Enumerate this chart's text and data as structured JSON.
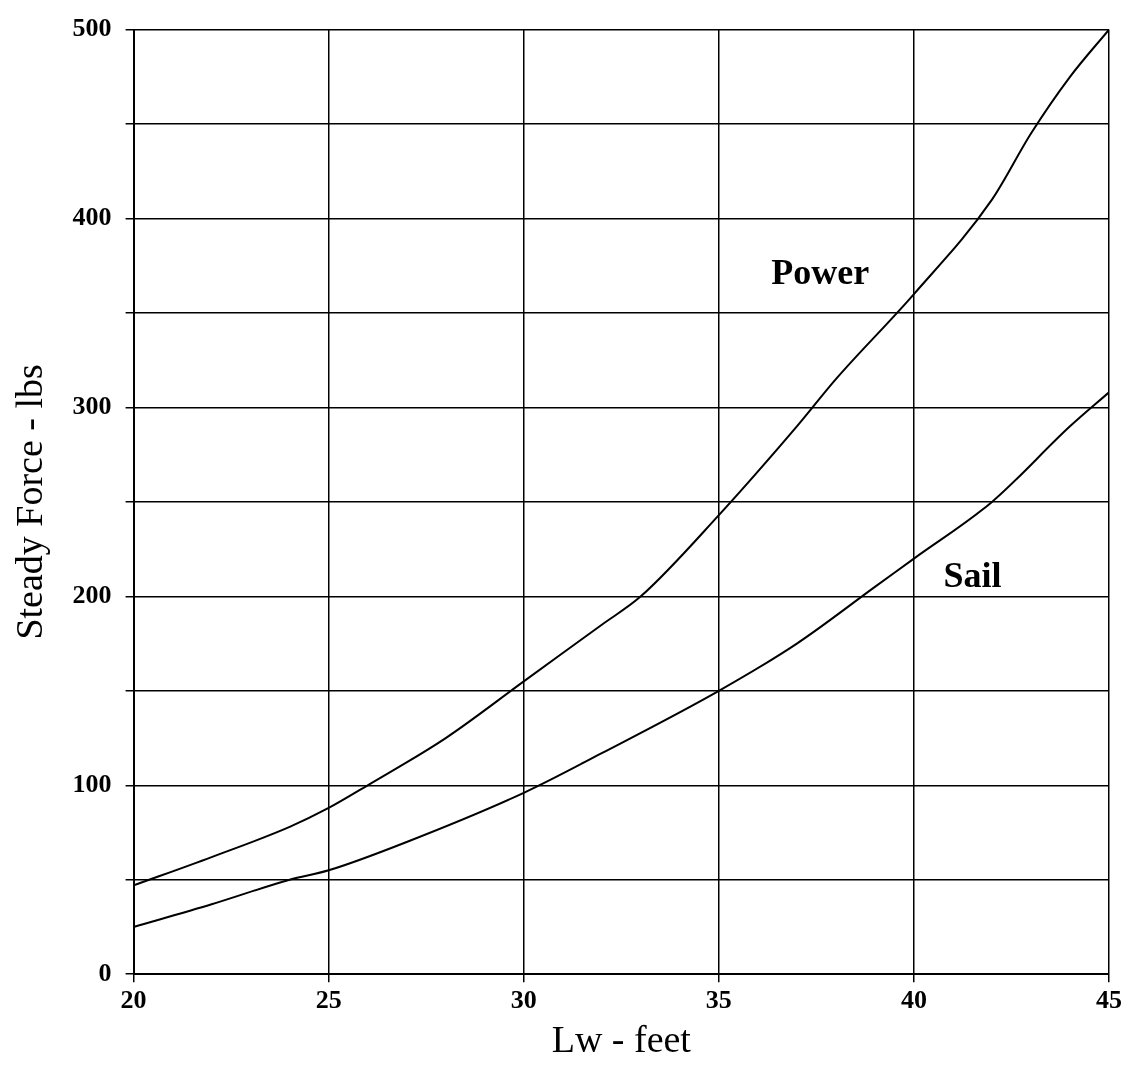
{
  "chart_data": {
    "type": "line",
    "xlabel": "Lw - feet",
    "ylabel": "Steady Force - lbs",
    "xlim": [
      20,
      45
    ],
    "xticks": [
      20,
      25,
      30,
      35,
      40,
      45
    ],
    "ylim": [
      0,
      500
    ],
    "yticks": [
      0,
      {
        "value": 50,
        "label": null
      },
      100,
      {
        "value": 150,
        "label": null
      },
      200,
      {
        "value": 250,
        "label": null
      },
      300,
      {
        "value": 350,
        "label": null
      },
      400,
      {
        "value": 450,
        "label": null
      },
      500
    ],
    "grid": true,
    "legend": false,
    "marker": "none",
    "line_style": "solid",
    "series": [
      {
        "color": "#000000",
        "x": [
          20,
          22,
          24,
          25,
          26,
          28,
          30,
          32,
          33,
          35,
          37,
          38,
          40,
          42,
          43,
          44,
          45
        ],
        "values": [
          47,
          62,
          78,
          88,
          100,
          125,
          155,
          185,
          200,
          243,
          290,
          315,
          360,
          410,
          445,
          475,
          500
        ]
      },
      {
        "color": "#000000",
        "x": [
          20,
          22,
          24,
          25,
          27,
          30,
          32,
          35,
          37,
          39,
          40,
          42,
          44,
          45
        ],
        "values": [
          25,
          37,
          50,
          55,
          70,
          96,
          117,
          150,
          175,
          205,
          220,
          250,
          290,
          308
        ]
      }
    ],
    "annotations": [
      "Power",
      "Sail"
    ]
  }
}
